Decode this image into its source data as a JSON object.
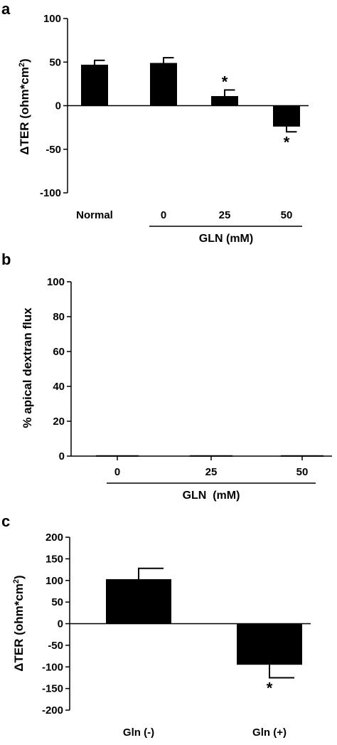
{
  "panel_labels": [
    "a",
    "b",
    "c"
  ],
  "chart_data": [
    {
      "type": "bar",
      "categories": [
        "Normal",
        "0",
        "25",
        "50"
      ],
      "values": [
        47,
        49,
        11,
        -24
      ],
      "errors": [
        5,
        6,
        7,
        6
      ],
      "significant": [
        false,
        false,
        true,
        true
      ],
      "marker": "*",
      "xlabel": "GLN (mM)",
      "ylabel": "ΔTER (ohm*cm2)",
      "ylim": [
        -100,
        100
      ],
      "yticks": [
        100,
        50,
        0,
        -50,
        -100
      ]
    },
    {
      "type": "bar",
      "categories": [
        "0",
        "25",
        "50"
      ],
      "values": [
        0.5,
        0.5,
        0.5
      ],
      "xlabel": "GLN  (mM)",
      "ylabel": "% apical dextran flux",
      "ylim": [
        0,
        100
      ],
      "yticks": [
        100,
        80,
        60,
        40,
        20,
        0
      ]
    },
    {
      "type": "bar",
      "categories": [
        "Gln (-)",
        "Gln (+)"
      ],
      "values": [
        103,
        -95
      ],
      "errors": [
        25,
        30
      ],
      "significant": [
        false,
        true
      ],
      "marker": "*",
      "xlabel": "",
      "ylabel": "ΔTER (ohm*cm2)",
      "ylim": [
        -200,
        200
      ],
      "yticks": [
        200,
        150,
        100,
        50,
        0,
        -50,
        -100,
        -150,
        -200
      ]
    }
  ]
}
